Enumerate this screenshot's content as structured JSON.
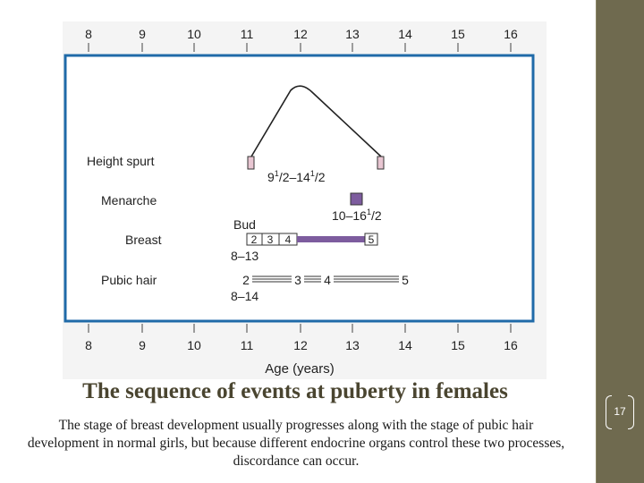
{
  "figure": {
    "age_ticks_top": [
      "8",
      "9",
      "10",
      "11",
      "12",
      "13",
      "14",
      "15",
      "16"
    ],
    "age_ticks_bottom": [
      "8",
      "9",
      "10",
      "11",
      "12",
      "13",
      "14",
      "15",
      "16"
    ],
    "axis_label": "Age (years)",
    "rows": {
      "height_spurt": {
        "label": "Height spurt",
        "range_text_parts": [
          "9",
          "1",
          "/2–14",
          "1",
          "/2"
        ],
        "start_age": 11.1,
        "end_age": 13.5,
        "peak_age": 12.0
      },
      "menarche": {
        "label": "Menarche",
        "range_text_parts": [
          "10–16",
          "1",
          "/2"
        ],
        "age": 13.1
      },
      "breast": {
        "label": "Breast",
        "bud_label": "Bud",
        "range_text": "8–13",
        "stages": [
          "2",
          "3",
          "4",
          "5"
        ]
      },
      "pubic_hair": {
        "label": "Pubic hair",
        "range_text": "8–14",
        "stages": [
          "2",
          "3",
          "4",
          "5"
        ]
      }
    },
    "colors": {
      "frame": "#1f6aa8",
      "pink_marker": "#e8c6d2",
      "purple": "#7d5c9e",
      "panel": "#ffffff",
      "figure_bg": "#f4f4f4"
    }
  },
  "slide": {
    "title": "The sequence of events at puberty in females",
    "caption": "The stage of breast development usually progresses along with the stage of pubic hair development in normal girls, but because different endocrine organs control these two processes, discordance can occur.",
    "page_number": "17"
  }
}
